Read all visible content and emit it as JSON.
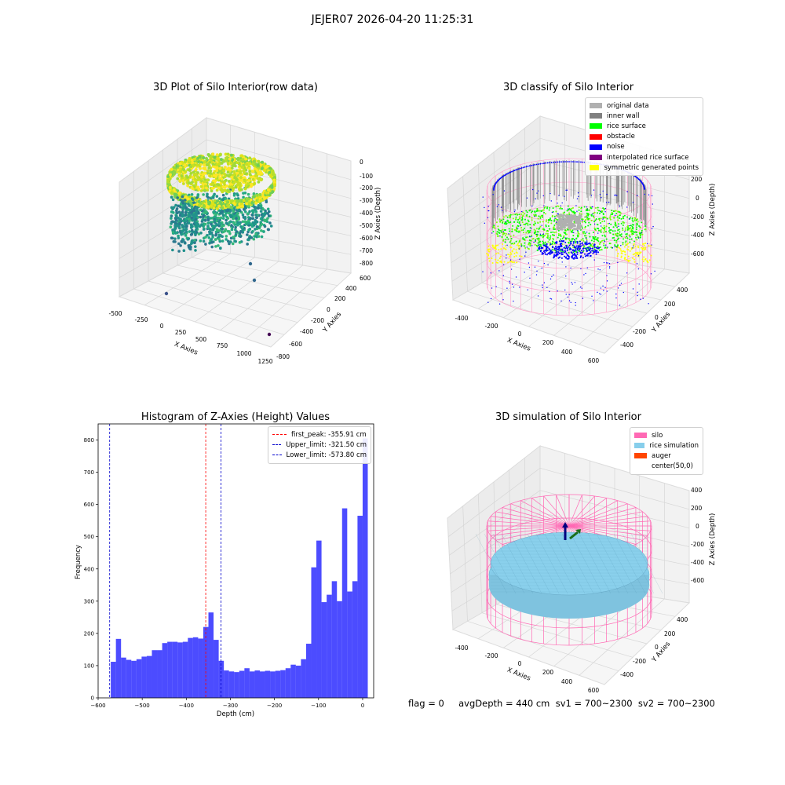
{
  "figure": {
    "suptitle": "JEJER07 2026-04-20 11:25:31"
  },
  "panels": {
    "raw": {
      "title": "3D Plot of Silo Interior(row data)",
      "xlabel": "X Axies",
      "ylabel": "Y Axies",
      "zlabel": "Z Axies (Depth)",
      "xticks": [
        "-500",
        "-250",
        "0",
        "250",
        "500",
        "750",
        "1000",
        "1250"
      ],
      "yticks": [
        "600",
        "400",
        "200",
        "0",
        "-200",
        "-400",
        "-600",
        "-800"
      ],
      "zticks": [
        "0",
        "-100",
        "-200",
        "-300",
        "-400",
        "-500",
        "-600",
        "-700",
        "-800"
      ]
    },
    "classify": {
      "title": "3D classify of Silo Interior",
      "xlabel": "X Axies",
      "ylabel": "Y Axies",
      "zlabel": "Z Axies (Depth)",
      "xticks": [
        "-400",
        "-200",
        "0",
        "200",
        "400",
        "600"
      ],
      "yticks": [
        "400",
        "200",
        "0",
        "-200",
        "-400"
      ],
      "zticks": [
        "200",
        "0",
        "-200",
        "-400",
        "-600"
      ],
      "legend": [
        {
          "label": "original data",
          "color": "#b0b0b0"
        },
        {
          "label": "inner wall",
          "color": "#808080"
        },
        {
          "label": "rice surface",
          "color": "#00ff00"
        },
        {
          "label": "obstacle",
          "color": "#ff0000"
        },
        {
          "label": "noise",
          "color": "#0000ff"
        },
        {
          "label": "interpolated rice surface",
          "color": "#800080"
        },
        {
          "label": "symmetric generated points",
          "color": "#ffff00"
        }
      ]
    },
    "histogram": {
      "title": "Histogram of Z-Axies (Height) Values",
      "xlabel": "Depth (cm)",
      "ylabel": "Frequency",
      "legend": [
        {
          "label": "first_peak: -355.91 cm",
          "color": "#ff0000"
        },
        {
          "label": "Upper_limit: -321.50 cm",
          "color": "#0000cc"
        },
        {
          "label": "Lower_limit: -573.80 cm",
          "color": "#0000cc"
        }
      ]
    },
    "simulation": {
      "title": "3D simulation of Silo Interior",
      "xlabel": "X Axies",
      "ylabel": "Y Axies",
      "zlabel": "Z Axies (Depth)",
      "xticks": [
        "-400",
        "-200",
        "0",
        "200",
        "400",
        "600"
      ],
      "yticks": [
        "400",
        "200",
        "0",
        "-200",
        "-400"
      ],
      "zticks": [
        "400",
        "200",
        "0",
        "-200",
        "-400",
        "-600"
      ],
      "legend": [
        {
          "label": "silo",
          "color": "#ff69b4"
        },
        {
          "label": "rice simulation",
          "color": "#87ceeb"
        },
        {
          "label": "auger",
          "color": "#ff4500"
        },
        {
          "label": "center(50,0)",
          "color": "none"
        }
      ]
    }
  },
  "footer": {
    "text": "flag = 0     avgDepth = 440 cm  sv1 = 700~2300  sv2 = 700~2300"
  },
  "chart_data": [
    {
      "type": "bar",
      "title": "Histogram of Z-Axies (Height) Values",
      "xlabel": "Depth (cm)",
      "ylabel": "Frequency",
      "xlim": [
        -600,
        25
      ],
      "ylim": [
        0,
        850
      ],
      "xticks": [
        -600,
        -500,
        -400,
        -300,
        -200,
        -100,
        0
      ],
      "yticks": [
        0,
        100,
        200,
        300,
        400,
        500,
        600,
        700,
        800
      ],
      "bin_start": -583,
      "bin_width": 11.66,
      "values": [
        0,
        112,
        183,
        125,
        118,
        115,
        120,
        128,
        130,
        148,
        148,
        170,
        174,
        174,
        172,
        174,
        186,
        188,
        184,
        220,
        265,
        180,
        115,
        85,
        82,
        80,
        84,
        92,
        82,
        85,
        82,
        84,
        82,
        84,
        86,
        92,
        103,
        100,
        120,
        168,
        405,
        488,
        297,
        320,
        362,
        300,
        588,
        330,
        362,
        565,
        805
      ],
      "bar_color": "#0000ff",
      "lines": [
        {
          "name": "first_peak: -355.91 cm",
          "x": -355.91,
          "color": "#ff0000"
        },
        {
          "name": "Upper_limit: -321.50 cm",
          "x": -321.5,
          "color": "#0000cc"
        },
        {
          "name": "Lower_limit: -573.80 cm",
          "x": -573.8,
          "color": "#0000cc"
        }
      ],
      "legend_position": "top-right",
      "grid": false
    }
  ]
}
